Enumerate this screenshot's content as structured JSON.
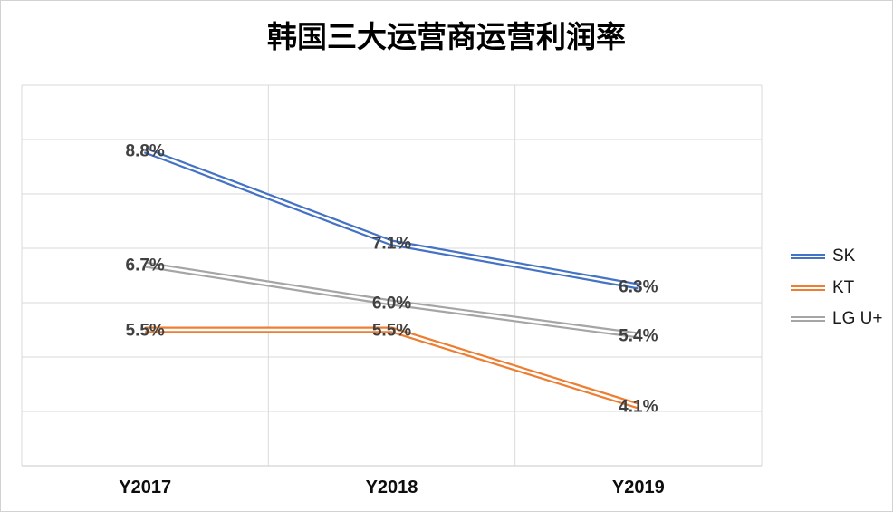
{
  "title": "韩国三大运营商运营利润率",
  "chart_data": {
    "type": "line",
    "title": "韩国三大运营商运营利润率",
    "categories": [
      "Y2017",
      "Y2018",
      "Y2019"
    ],
    "series": [
      {
        "name": "SK",
        "color": "#4472C4",
        "values": [
          8.8,
          7.1,
          6.3
        ],
        "labels": [
          "8.8%",
          "7.1%",
          "6.3%"
        ]
      },
      {
        "name": "KT",
        "color": "#ED7D31",
        "values": [
          5.5,
          5.5,
          4.1
        ],
        "labels": [
          "5.5%",
          "5.5%",
          "4.1%"
        ]
      },
      {
        "name": "LG U+",
        "color": "#A5A5A5",
        "values": [
          6.7,
          6.0,
          5.4
        ],
        "labels": [
          "6.7%",
          "6.0%",
          "5.4%"
        ]
      }
    ],
    "xlabel": "",
    "ylabel": "",
    "ylim": [
      3,
      10
    ],
    "gridline_step": 1,
    "grid": true,
    "y_tick_labels_visible": false,
    "data_label_position": "center",
    "legend_position": "right",
    "line_style": "double-stroke"
  },
  "colors": {
    "data_label": "#404040",
    "axis_label": "#0d0d0d",
    "gridline": "#dadada",
    "axis_line": "#c9c9c9",
    "line_inner_highlight": "#ffffff",
    "background": "#ffffff",
    "frame_border": "#d2d2d2"
  }
}
